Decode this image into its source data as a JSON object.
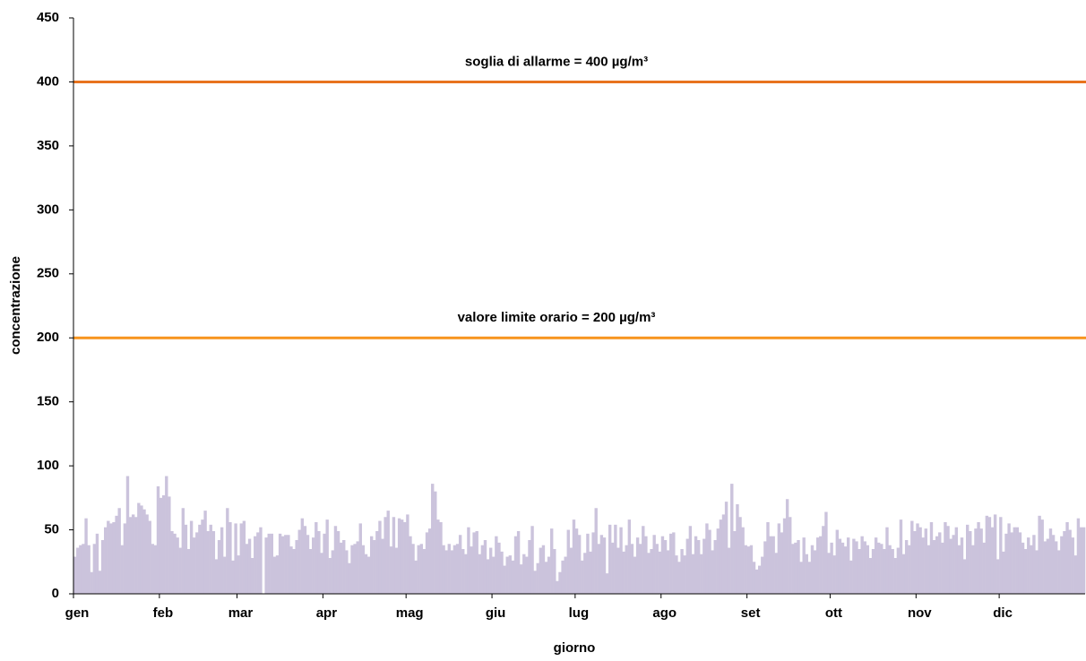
{
  "chart_data": {
    "type": "bar",
    "xlabel": "giorno",
    "ylabel": "concentrazione",
    "color": "#cbc3dc",
    "values": [
      29,
      36,
      38,
      39,
      59,
      38,
      17,
      39,
      47,
      18,
      42,
      52,
      57,
      55,
      56,
      61,
      67,
      38,
      55,
      92,
      60,
      62,
      60,
      71,
      69,
      66,
      62,
      57,
      39,
      38,
      84,
      75,
      77,
      92,
      76,
      49,
      47,
      44,
      36,
      67,
      54,
      35,
      57,
      44,
      48,
      54,
      58,
      65,
      49,
      54,
      49,
      27,
      42,
      52,
      29,
      67,
      56,
      26,
      55,
      30,
      55,
      57,
      39,
      43,
      28,
      45,
      48,
      52,
      0,
      44,
      47,
      47,
      29,
      30,
      47,
      45,
      46,
      46,
      37,
      35,
      42,
      50,
      59,
      53,
      46,
      35,
      44,
      56,
      49,
      32,
      47,
      58,
      28,
      34,
      53,
      49,
      40,
      42,
      34,
      24,
      38,
      39,
      41,
      55,
      38,
      31,
      29,
      45,
      42,
      49,
      57,
      43,
      60,
      65,
      37,
      60,
      36,
      59,
      58,
      56,
      62,
      45,
      39,
      26,
      38,
      39,
      35,
      48,
      51,
      86,
      80,
      58,
      56,
      38,
      34,
      39,
      34,
      38,
      39,
      46,
      35,
      31,
      52,
      37,
      48,
      49,
      31,
      38,
      42,
      27,
      36,
      29,
      45,
      40,
      33,
      22,
      29,
      30,
      26,
      45,
      49,
      23,
      31,
      29,
      42,
      53,
      18,
      24,
      36,
      38,
      25,
      29,
      51,
      35,
      10,
      17,
      26,
      29,
      50,
      36,
      58,
      51,
      46,
      26,
      32,
      47,
      33,
      48,
      67,
      39,
      46,
      44,
      16,
      54,
      40,
      54,
      36,
      52,
      33,
      38,
      58,
      39,
      29,
      44,
      39,
      53,
      45,
      32,
      35,
      46,
      39,
      33,
      45,
      42,
      34,
      47,
      48,
      30,
      25,
      35,
      30,
      43,
      53,
      31,
      45,
      42,
      31,
      43,
      55,
      50,
      34,
      42,
      51,
      58,
      62,
      72,
      36,
      86,
      49,
      70,
      60,
      52,
      38,
      37,
      38,
      25,
      19,
      22,
      29,
      41,
      56,
      45,
      45,
      32,
      55,
      48,
      59,
      74,
      60,
      39,
      40,
      42,
      25,
      44,
      31,
      25,
      38,
      34,
      44,
      45,
      53,
      64,
      32,
      40,
      30,
      50,
      43,
      40,
      37,
      44,
      26,
      43,
      41,
      35,
      45,
      41,
      38,
      28,
      35,
      44,
      40,
      39,
      35,
      52,
      38,
      35,
      28,
      36,
      58,
      31,
      42,
      38,
      57,
      49,
      55,
      52,
      44,
      51,
      38,
      56,
      42,
      45,
      48,
      40,
      56,
      53,
      43,
      46,
      52,
      38,
      44,
      27,
      54,
      49,
      38,
      51,
      56,
      51,
      40,
      61,
      60,
      52,
      62,
      27,
      60,
      33,
      47,
      55,
      48,
      52,
      52,
      48,
      40,
      35,
      44,
      38,
      46,
      34,
      61,
      58,
      41,
      43,
      51,
      46,
      41,
      34,
      45,
      49,
      56,
      50,
      44,
      30,
      59,
      52,
      52
    ],
    "xlim": [
      0,
      365
    ],
    "xticks": [
      {
        "value": 0,
        "label": "gen"
      },
      {
        "value": 31,
        "label": "feb"
      },
      {
        "value": 59,
        "label": "mar"
      },
      {
        "value": 90,
        "label": "apr"
      },
      {
        "value": 120,
        "label": "mag"
      },
      {
        "value": 151,
        "label": "giu"
      },
      {
        "value": 181,
        "label": "lug"
      },
      {
        "value": 212,
        "label": "ago"
      },
      {
        "value": 243,
        "label": "set"
      },
      {
        "value": 273,
        "label": "ott"
      },
      {
        "value": 304,
        "label": "nov"
      },
      {
        "value": 334,
        "label": "dic"
      }
    ],
    "ylim": [
      0,
      450
    ],
    "yticks": [
      0,
      50,
      100,
      150,
      200,
      250,
      300,
      350,
      400,
      450
    ],
    "annotations": [
      {
        "text": "soglia di allarme = 400 µg/m³",
        "value": 400,
        "color": "#e8731e"
      },
      {
        "text": "valore limite orario = 200 µg/m³",
        "value": 200,
        "color": "#f7941d"
      }
    ]
  }
}
